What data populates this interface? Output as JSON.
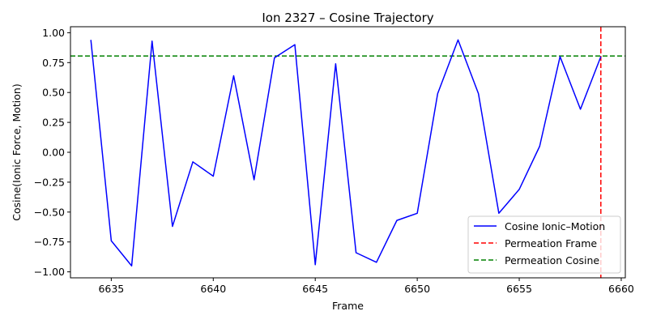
{
  "chart_data": {
    "type": "line",
    "title": "Ion 2327 – Cosine Trajectory",
    "xlabel": "Frame",
    "ylabel": "Cosine(Ionic Force, Motion)",
    "xlim": [
      6633,
      6660.2
    ],
    "ylim": [
      -1.05,
      1.05
    ],
    "xticks": [
      6635,
      6640,
      6645,
      6650,
      6655,
      6660
    ],
    "yticks": [
      -1.0,
      -0.75,
      -0.5,
      -0.25,
      0.0,
      0.25,
      0.5,
      0.75,
      1.0
    ],
    "ytick_labels": [
      "−1.00",
      "−0.75",
      "−0.50",
      "−0.25",
      "0.00",
      "0.25",
      "0.50",
      "0.75",
      "1.00"
    ],
    "grid": false,
    "legend_position": "lower-right",
    "series": [
      {
        "name": "Cosine Ionic–Motion",
        "color": "#0000ff",
        "style": "solid",
        "x": [
          6634,
          6635,
          6636,
          6637,
          6638,
          6639,
          6640,
          6641,
          6642,
          6643,
          6644,
          6645,
          6646,
          6647,
          6648,
          6649,
          6650,
          6651,
          6652,
          6653,
          6654,
          6655,
          6656,
          6657,
          6658,
          6659
        ],
        "y": [
          0.94,
          -0.74,
          -0.95,
          0.93,
          -0.62,
          -0.08,
          -0.2,
          0.64,
          -0.23,
          0.79,
          0.9,
          -0.94,
          0.74,
          -0.84,
          -0.92,
          -0.57,
          -0.51,
          0.49,
          0.94,
          0.49,
          -0.51,
          -0.31,
          0.05,
          0.8,
          0.36,
          0.8
        ]
      }
    ],
    "reference_lines": [
      {
        "name": "Permeation Frame",
        "orientation": "vertical",
        "value": 6659,
        "color": "#ff0000",
        "style": "dashed"
      },
      {
        "name": "Permeation Cosine",
        "orientation": "horizontal",
        "value": 0.805,
        "color": "#008000",
        "style": "dashed"
      }
    ]
  }
}
